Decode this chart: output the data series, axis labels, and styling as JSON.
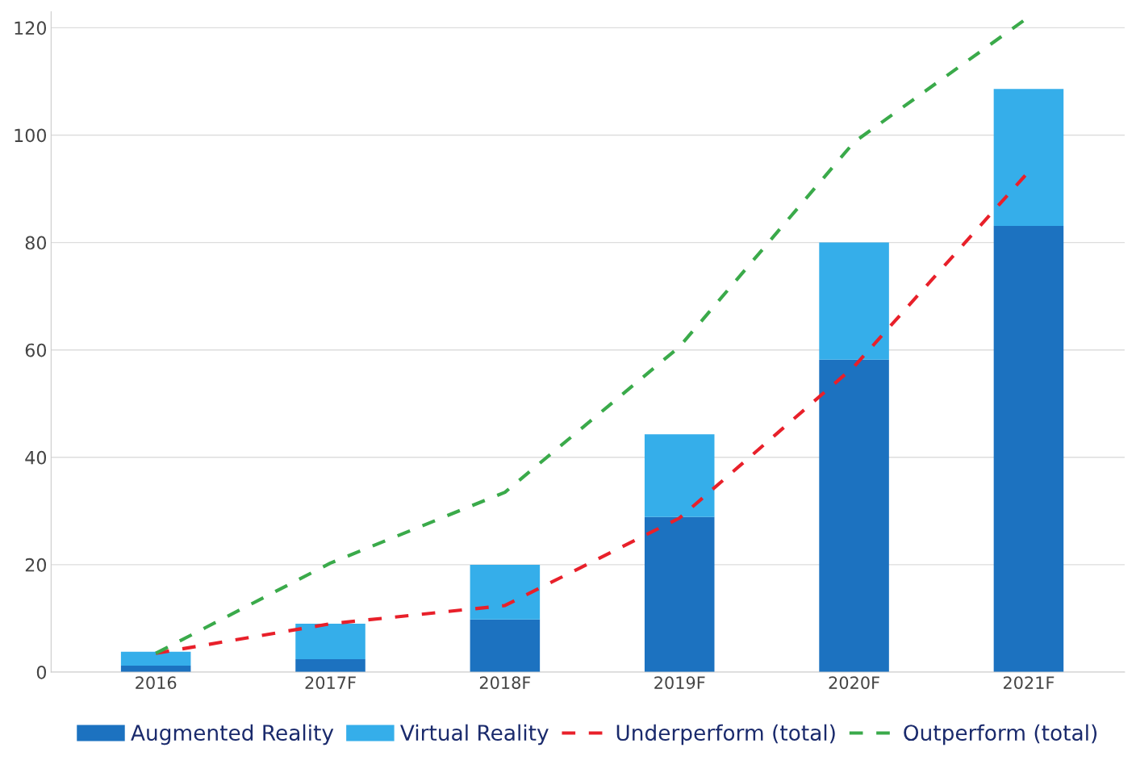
{
  "chart_data": {
    "type": "bar",
    "stacked": true,
    "categories": [
      "2016",
      "2017F",
      "2018F",
      "2019F",
      "2020F",
      "2021F"
    ],
    "series": [
      {
        "name": "Augmented Reality",
        "color": "#1c72c0",
        "values": [
          1.2,
          2.4,
          9.8,
          28.9,
          58.2,
          83.1
        ]
      },
      {
        "name": "Virtual Reality",
        "color": "#35aeea",
        "values": [
          2.6,
          6.6,
          10.2,
          15.4,
          21.8,
          25.5
        ]
      },
      {
        "name": "Underperform (total)",
        "type": "line",
        "color": "#e8202a",
        "line_style": "dashed",
        "values": [
          3.5,
          9.0,
          12.4,
          28.7,
          56.9,
          93.2
        ]
      },
      {
        "name": "Outperform (total)",
        "type": "line",
        "color": "#3aaa4a",
        "line_style": "dashed",
        "values": [
          3.5,
          20.3,
          33.5,
          60.6,
          98.7,
          122
        ]
      }
    ],
    "ylim": [
      0,
      123
    ],
    "yticks": [
      0,
      20,
      40,
      60,
      80,
      100,
      120
    ],
    "grid": "y",
    "legend": "bottom",
    "marker": "none"
  }
}
